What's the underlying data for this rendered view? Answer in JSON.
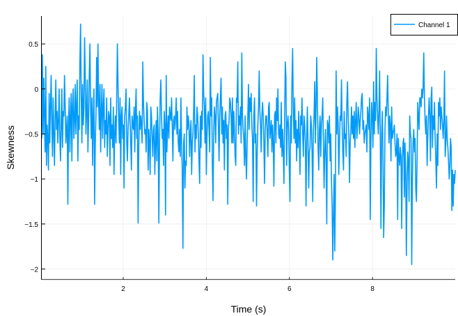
{
  "chart_data": {
    "type": "line",
    "title": "",
    "xlabel": "Time (s)",
    "ylabel": "Skewness",
    "xlim": [
      0.04,
      9.99
    ],
    "ylim": [
      -2.12,
      0.81
    ],
    "xticks": [
      2,
      4,
      6,
      8
    ],
    "xtick_labels": [
      "2",
      "4",
      "6",
      "8"
    ],
    "yticks": [
      0.5,
      0,
      -0.5,
      -1,
      -1.5,
      -2
    ],
    "ytick_labels": [
      "0.5",
      "0",
      "-0.5",
      "-1",
      "-1.5",
      "-2"
    ],
    "grid": true,
    "legend_position": "top-right",
    "series": [
      {
        "name": "Channel 1",
        "color": "#009AFA",
        "x_start": 0.04,
        "x_step": 0.02,
        "values": [
          -0.55,
          0.38,
          -0.5,
          0.12,
          -0.3,
          -0.7,
          0.25,
          -0.85,
          -0.4,
          -0.55,
          -0.9,
          -0.05,
          -0.6,
          -0.2,
          0.15,
          -0.35,
          -0.75,
          -0.1,
          -0.5,
          -0.85,
          -0.3,
          0.1,
          -0.45,
          -0.25,
          -0.6,
          -0.35,
          0.0,
          -0.55,
          -0.8,
          -0.4,
          0.0,
          -0.65,
          -0.25,
          -0.3,
          0.15,
          -0.2,
          -0.6,
          -0.45,
          -0.3,
          -1.28,
          -0.4,
          -0.1,
          -0.7,
          -0.3,
          -0.05,
          -0.8,
          -0.2,
          0.0,
          -0.55,
          -0.35,
          0.05,
          -0.5,
          -0.2,
          0.1,
          -0.8,
          -0.3,
          -0.45,
          0.3,
          0.72,
          -0.1,
          -0.6,
          0.05,
          -0.4,
          -0.2,
          0.57,
          0.15,
          -0.5,
          -0.25,
          0.1,
          -0.7,
          -0.35,
          0.15,
          0.5,
          -0.2,
          -0.55,
          -0.1,
          -0.85,
          -0.3,
          0.0,
          -1.28,
          -0.6,
          -0.3,
          0.35,
          -0.2,
          0.5,
          -0.15,
          -0.45,
          0.05,
          -0.7,
          -0.25,
          0.05,
          -0.55,
          -0.2,
          0.0,
          -0.65,
          -0.35,
          -0.5,
          -0.1,
          -0.75,
          -0.45,
          -0.25,
          -0.3,
          -0.85,
          -0.1,
          -0.55,
          -0.4,
          -0.65,
          -0.2,
          -0.95,
          -0.5,
          -0.3,
          -0.6,
          -0.1,
          0.5,
          0.05,
          -0.35,
          -0.6,
          -0.1,
          -0.95,
          -0.3,
          -0.2,
          -0.55,
          -0.4,
          -1.1,
          -0.3,
          -0.2,
          0.0,
          -0.6,
          -0.8,
          -0.45,
          -0.3,
          -0.1,
          -0.35,
          -0.6,
          -0.9,
          -0.3,
          -0.4,
          -0.45,
          -0.2,
          -0.7,
          -0.25,
          0.0,
          -0.55,
          -0.3,
          -1.49,
          -0.65,
          -0.25,
          -0.45,
          -0.3,
          -0.4,
          -0.6,
          0.3,
          -0.15,
          -0.35,
          -0.5,
          -0.45,
          -0.7,
          -0.15,
          -0.25,
          -0.9,
          -0.45,
          -0.6,
          -0.95,
          -0.2,
          -0.3,
          -0.55,
          -0.75,
          -0.45,
          -0.4,
          -0.95,
          -0.6,
          -0.35,
          -0.8,
          -0.2,
          -0.5,
          -1.49,
          -0.6,
          -0.1,
          0.1,
          -0.3,
          -0.55,
          -0.45,
          -0.85,
          -0.25,
          -0.4,
          -1.4,
          0.15,
          -0.7,
          -0.45,
          -0.3,
          -0.55,
          -0.2,
          -0.3,
          -0.35,
          -0.1,
          -0.4,
          -0.8,
          -0.35,
          -0.3,
          -0.45,
          -0.3,
          -0.1,
          -0.5,
          -0.25,
          -0.6,
          -0.7,
          -0.45,
          -0.75,
          -0.1,
          -0.6,
          -0.9,
          -1.77,
          -0.6,
          -0.5,
          -1.1,
          -0.8,
          -0.85,
          -0.2,
          -0.45,
          -0.3,
          -0.4,
          -0.75,
          -0.5,
          -0.35,
          -0.95,
          -0.6,
          -0.5,
          -0.25,
          0.15,
          -0.7,
          -0.4,
          -0.55,
          -0.2,
          -0.3,
          -0.5,
          -0.8,
          -1.05,
          -0.3,
          -0.65,
          -0.25,
          -0.45,
          0.38,
          -0.05,
          -0.2,
          -0.6,
          -0.1,
          -0.95,
          -0.5,
          -0.3,
          -0.25,
          -0.45,
          -0.7,
          0.35,
          -0.3,
          -0.1,
          -0.85,
          -1.24,
          -0.5,
          -0.2,
          -0.3,
          -0.6,
          -0.15,
          -0.1,
          -0.05,
          -0.4,
          -0.8,
          -0.3,
          -0.1,
          0.12,
          -0.5,
          -0.2,
          -0.6,
          -0.35,
          -0.9,
          -0.3,
          -0.25,
          -0.55,
          -0.4,
          -1.28,
          -0.45,
          -0.35,
          -0.1,
          -0.15,
          -0.3,
          -0.6,
          -0.1,
          -0.6,
          -0.25,
          -0.45,
          -0.75,
          -0.85,
          -0.1,
          -0.15,
          0.3,
          -0.5,
          -0.3,
          -0.4,
          -0.2,
          -0.6,
          0.4,
          -0.3,
          -0.45,
          -0.55,
          -0.85,
          -0.3,
          -0.75,
          -1.0,
          -0.6,
          -0.3,
          0.05,
          -0.45,
          -0.1,
          -0.25,
          -0.05,
          -0.4,
          -0.55,
          -1.25,
          -0.3,
          -0.1,
          -0.6,
          -0.5,
          -1.3,
          -0.7,
          -0.4,
          -0.2,
          0.2,
          -0.25,
          -0.4,
          -0.7,
          -0.3,
          -0.15,
          -0.3,
          -0.6,
          -1.05,
          -0.45,
          -0.3,
          -0.3,
          -0.5,
          -0.75,
          -0.2,
          -0.15,
          -0.55,
          -0.45,
          -0.35,
          -0.7,
          -0.4,
          -0.6,
          -1.08,
          -0.3,
          -0.25,
          -0.6,
          -0.1,
          -0.35,
          0.0,
          -0.5,
          -0.55,
          -0.4,
          -0.65,
          -0.15,
          -0.75,
          -0.45,
          -0.7,
          -1.05,
          -0.35,
          0.3,
          0.13,
          -0.85,
          -0.4,
          -0.3,
          -0.45,
          -0.9,
          -1.25,
          -0.3,
          -0.6,
          0.1,
          0.45,
          -0.25,
          -0.55,
          -0.1,
          -0.6,
          -0.35,
          -0.8,
          -0.45,
          -0.65,
          -0.25,
          -0.55,
          -0.95,
          -0.3,
          -0.4,
          -0.1,
          -0.5,
          -0.75,
          -0.3,
          -0.4,
          -0.6,
          -1.3,
          -0.55,
          -0.2,
          -0.6,
          -1.1,
          -0.7,
          -0.65,
          -0.3,
          -0.4,
          -0.7,
          -1.25,
          -0.45,
          -0.3,
          0.08,
          -0.6,
          -0.2,
          0.35,
          -0.1,
          -0.65,
          -0.9,
          -0.45,
          -0.3,
          -0.75,
          -0.4,
          -0.3,
          -0.1,
          -0.6,
          -1.1,
          -0.7,
          -0.45,
          -0.8,
          -1.5,
          -0.35,
          -0.4,
          -0.6,
          -0.3,
          -0.8,
          -0.5,
          -1.0,
          -1.3,
          -1.9,
          -1.4,
          -0.95,
          -1.8,
          -1.1,
          0.2,
          -0.5,
          -0.2,
          -0.4,
          -0.95,
          -0.6,
          -0.3,
          -0.35,
          0.1,
          -0.4,
          -0.7,
          -0.9,
          -0.25,
          -0.55,
          -0.5,
          -0.75,
          -0.15,
          0.08,
          -0.3,
          -0.5,
          -1.04,
          -0.6,
          -0.45,
          -0.2,
          -0.5,
          -0.3,
          -0.55,
          -0.25,
          -0.65,
          -0.35,
          -0.15,
          -0.55,
          -0.4,
          -0.2,
          -0.3,
          -0.5,
          -0.35,
          -0.25,
          -0.1,
          -0.05,
          -0.45,
          -0.35,
          -0.6,
          -0.5,
          -0.45,
          -0.4,
          -0.7,
          -0.2,
          -0.3,
          -0.45,
          -0.1,
          -1.45,
          -0.55,
          -0.15,
          -0.3,
          -0.65,
          0.08,
          -0.5,
          -0.15,
          -0.35,
          0.45,
          -0.1,
          -0.3,
          -0.5,
          -0.25,
          0.2,
          -0.55,
          -1.55,
          -0.5,
          -0.25,
          -0.7,
          -1.65,
          -1.3,
          -0.45,
          -0.2,
          -0.3,
          -0.1,
          0.15,
          -0.3,
          -0.6,
          -0.3,
          -0.4,
          -0.8,
          -0.2,
          -0.55,
          -0.5,
          -0.45,
          -0.4,
          -0.6,
          -0.75,
          -0.7,
          -0.5,
          -1.45,
          -0.55,
          -0.75,
          -0.85,
          -0.65,
          -0.75,
          -1.55,
          -0.8,
          -0.6,
          -0.55,
          -1.2,
          -0.6,
          -0.95,
          -1.85,
          -1.05,
          -0.7,
          -0.8,
          -1.25,
          -0.3,
          -0.5,
          -0.55,
          -1.95,
          -1.0,
          -0.6,
          -0.45,
          -0.7,
          -0.55,
          -1.1,
          -1.25,
          -0.8,
          -0.15,
          -0.3,
          -0.45,
          -0.1,
          -0.1,
          -0.2,
          0.0,
          -0.1,
          0.0,
          0.4,
          -0.1,
          -0.35,
          -0.5,
          -0.3,
          -0.85,
          -0.55,
          -0.3,
          -0.1,
          -0.3,
          -0.8,
          -0.1,
          0.02,
          -0.65,
          -0.3,
          -0.45,
          -0.15,
          -0.55,
          -0.8,
          -1.1,
          -0.5,
          -0.85,
          -0.15,
          -0.3,
          -0.1,
          -0.45,
          -0.2,
          -0.3,
          -0.4,
          -0.55,
          -0.35,
          0.2,
          -0.75,
          -0.6,
          -0.3,
          -0.55,
          -0.65,
          -0.8,
          -1.0,
          -0.85,
          -0.55,
          -0.65,
          -1.35,
          -0.9,
          -1.3,
          -0.95,
          -1.05,
          -0.9
        ]
      }
    ]
  },
  "legend": {
    "items": [
      {
        "label": "Channel 1",
        "color": "#009AFA"
      }
    ]
  },
  "axes": {
    "xlabel": "Time (s)",
    "ylabel": "Skewness"
  }
}
